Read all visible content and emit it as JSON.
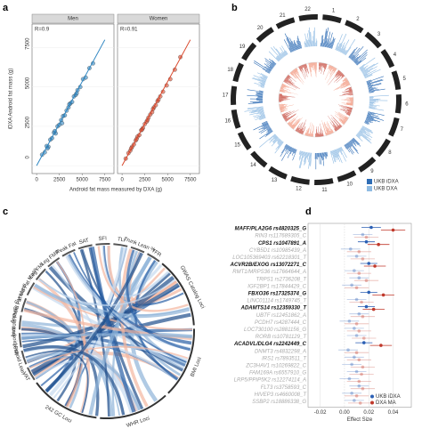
{
  "panels": [
    "a",
    "b",
    "c",
    "d"
  ],
  "chart_data": [
    {
      "type": "scatter",
      "ylabel": "iDXA Android fat mass (g)",
      "xlabel": "Android fat mass measured by DXA (g)",
      "xlim": [
        -500,
        8500
      ],
      "ylim": [
        -500,
        9000
      ],
      "xticks": [
        0,
        2500,
        5000,
        7500
      ],
      "yticks": [
        0,
        2500,
        5000,
        7500
      ],
      "facets": [
        {
          "name": "Men",
          "annotation": "R=0.9",
          "color": "#2e86c1",
          "x": [
            600,
            900,
            1100,
            1300,
            1500,
            1700,
            1900,
            2100,
            2300,
            2500,
            2700,
            2900,
            3100,
            3300,
            3500,
            3700,
            3900,
            4100,
            4300,
            4500,
            4800,
            5100,
            5400,
            5800,
            6200,
            1200,
            2000,
            2800,
            3600,
            4400
          ],
          "y": [
            700,
            850,
            1250,
            1200,
            1650,
            1750,
            2100,
            2050,
            2500,
            2600,
            2900,
            3150,
            3200,
            3500,
            3700,
            3950,
            4050,
            4400,
            4500,
            4800,
            5000,
            5500,
            5600,
            6200,
            6500,
            1100,
            2200,
            2700,
            3900,
            4600
          ]
        },
        {
          "name": "Women",
          "annotation": "R=0.91",
          "color": "#d9472b",
          "x": [
            400,
            700,
            900,
            1100,
            1300,
            1500,
            1700,
            1900,
            2100,
            2300,
            2500,
            2700,
            2900,
            3100,
            3300,
            3500,
            3700,
            3900,
            4200,
            4500,
            4900,
            5300,
            5800,
            1000,
            1600,
            2200,
            2800,
            3400,
            4000,
            6400
          ],
          "y": [
            450,
            800,
            950,
            1200,
            1350,
            1600,
            1850,
            1950,
            2250,
            2400,
            2650,
            2800,
            3050,
            3250,
            3400,
            3700,
            3850,
            4100,
            4400,
            4700,
            5100,
            5500,
            6100,
            1100,
            1700,
            2300,
            2900,
            3600,
            4200,
            6900
          ]
        }
      ]
    },
    {
      "type": "forest",
      "xlabel": "Effect Size",
      "xlim": [
        -0.03,
        0.055
      ],
      "xticks": [
        -0.02,
        {
          "value": 0,
          "label": "0.00"
        },
        0.02,
        0.04
      ],
      "legend": "bottom-right",
      "categories": [
        "MAFF/PLA2G6 rs4820325_G",
        "RIN3 rs117689305_C",
        "CPS1 rs1047891_A",
        "CYB5D1 rs10985439_A",
        "LOC105369403 rs62218301_T",
        "ACVR2B/EXOG rs13072271_C",
        "RMT1/MRPS36 rs17664644_A",
        "TRPS1 rs2736208_T",
        "IGF2BP1 rs17844429_C",
        "FBXO36 rs17325374_G",
        "LINC01114 rs1749745_T",
        "ADAMTS14 rs12359330_T",
        "UBTF rs12451862_A",
        "PCDH7 rs4287444_C",
        "LOC730100 rs2881156_G",
        "RORB rs10781129_T",
        "ACADVL/DLG4 rs2242449_C",
        "DNMT3 rs4832298_A",
        "IRS1 rs7893511_T",
        "ZC3HAV1 rs10269822_C",
        "FAM169A rs6557910_G",
        "LRP5/PPIP5K2 rs12274114_A",
        "FLT3 rs3758593_C",
        "HIVEP3 rs4660008_T",
        "SSBP2 rs18886338_G"
      ],
      "bold": [
        0,
        2,
        5,
        9,
        11,
        16
      ],
      "series": [
        {
          "name": "UKB iDXA",
          "color": "#2b5fb4",
          "values": [
            0.022,
            0.015,
            0.018,
            0.005,
            0.01,
            0.02,
            0.008,
            0.012,
            0.006,
            0.02,
            0.01,
            0.018,
            0.012,
            0.004,
            0.008,
            0.01,
            0.016,
            0.003,
            0.008,
            0.006,
            0.01,
            0.004,
            0.012,
            0.006,
            0.008
          ],
          "errors": [
            0.008,
            0.008,
            0.007,
            0.008,
            0.008,
            0.007,
            0.008,
            0.008,
            0.008,
            0.007,
            0.008,
            0.007,
            0.008,
            0.008,
            0.008,
            0.008,
            0.007,
            0.008,
            0.008,
            0.008,
            0.008,
            0.008,
            0.008,
            0.008,
            0.008
          ]
        },
        {
          "name": "DXA MA",
          "color": "#c0392b",
          "values": [
            0.04,
            0.018,
            0.028,
            0.012,
            0.015,
            0.025,
            0.012,
            0.018,
            0.01,
            0.032,
            0.014,
            0.024,
            0.015,
            0.01,
            0.012,
            0.016,
            0.03,
            0.01,
            0.012,
            0.015,
            0.014,
            0.012,
            0.015,
            0.01,
            0.013
          ],
          "errors": [
            0.01,
            0.01,
            0.009,
            0.01,
            0.01,
            0.009,
            0.01,
            0.01,
            0.01,
            0.009,
            0.01,
            0.009,
            0.01,
            0.01,
            0.01,
            0.01,
            0.009,
            0.01,
            0.01,
            0.01,
            0.01,
            0.01,
            0.01,
            0.01,
            0.01
          ]
        }
      ]
    }
  ],
  "circos": {
    "chromosomes": [
      "1",
      "2",
      "3",
      "4",
      "5",
      "6",
      "7",
      "8",
      "9",
      "10",
      "11",
      "12",
      "13",
      "14",
      "15",
      "16",
      "17",
      "18",
      "19",
      "20",
      "21",
      "22"
    ],
    "legend": [
      {
        "name": "UKB iDXA",
        "color": "#2f6db5"
      },
      {
        "name": "UKB DXA",
        "color": "#8fbbe3"
      }
    ]
  },
  "chord": {
    "segments": [
      "Android Fat Mass",
      "Gynoid Fat Mass",
      "Leg FMI",
      "Leg FMR",
      "Peak Fat",
      "SAT",
      "SFI",
      "TLI",
      "Trunk Lean %",
      "TFR",
      "GWAS Catalog Loci",
      "BMI Loci",
      "WHR Loci",
      "242 GC Loci",
      "VAT",
      "Android Lean",
      "Android FMI",
      "Android FMR"
    ],
    "major": [
      10,
      11,
      12,
      13
    ]
  }
}
